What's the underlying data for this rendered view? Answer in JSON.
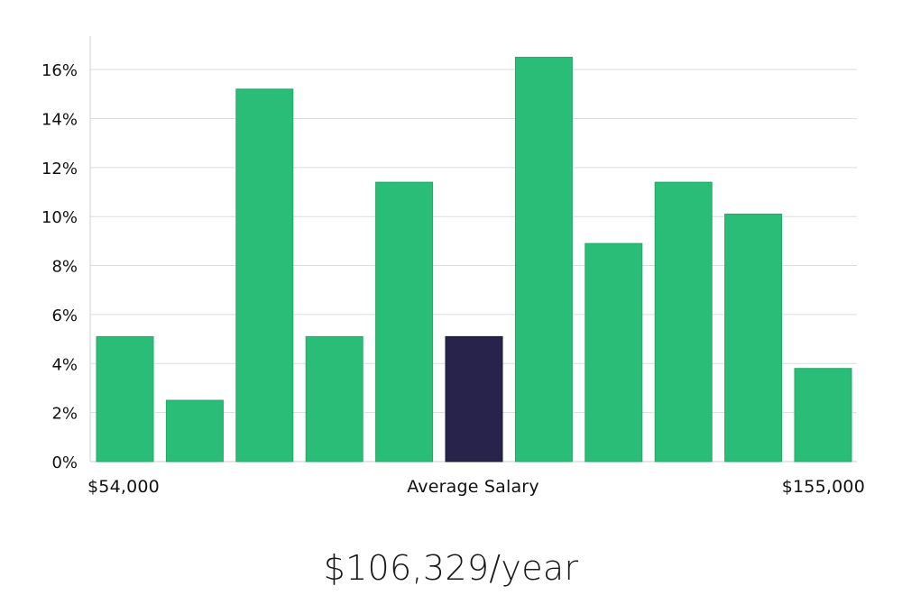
{
  "colors": {
    "bar": "#2abd77",
    "highlight": "#28234a",
    "grid": "#dedede",
    "axis": "#cfcfcf"
  },
  "chart_data": {
    "type": "bar",
    "title": "",
    "xlabel": "Average Salary",
    "ylabel": "",
    "x_min_label": "$54,000",
    "x_max_label": "$155,000",
    "values": [
      5.1,
      2.5,
      15.2,
      5.1,
      11.4,
      5.1,
      16.5,
      8.9,
      11.4,
      10.1,
      3.8
    ],
    "highlight_index": 5,
    "ylim": [
      0,
      17
    ],
    "yticks": [
      0,
      2,
      4,
      6,
      8,
      10,
      12,
      14,
      16
    ],
    "ytick_labels": [
      "0%",
      "2%",
      "4%",
      "6%",
      "8%",
      "10%",
      "12%",
      "14%",
      "16%"
    ],
    "grid": true,
    "legend": "none"
  },
  "salary_text": "$106,329/year"
}
